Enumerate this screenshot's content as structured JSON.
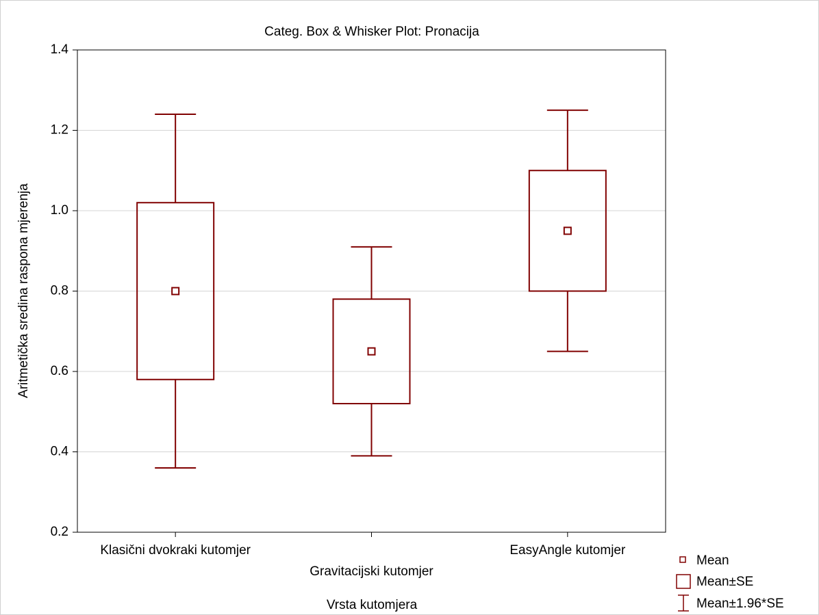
{
  "chart_data": {
    "type": "box",
    "title": "Categ. Box & Whisker Plot: Pronacija",
    "x_label": "Vrsta kutomjera",
    "y_label": "Aritmetička sredina raspona mjerenja",
    "categories": [
      "Klasični dvokraki kutomjer",
      "Gravitacijski kutomjer",
      "EasyAngle kutomjer"
    ],
    "series": [
      {
        "name": "Mean",
        "color": "#800000",
        "values": [
          0.8,
          0.65,
          0.95
        ]
      },
      {
        "name": "Mean±SE",
        "color": "#800000",
        "low": [
          0.58,
          0.52,
          0.8
        ],
        "high": [
          1.02,
          0.78,
          1.1
        ]
      },
      {
        "name": "Mean±1.96*SE",
        "color": "#800000",
        "low": [
          0.36,
          0.39,
          0.65
        ],
        "high": [
          1.24,
          0.91,
          1.25
        ]
      }
    ],
    "ylim": [
      0.2,
      1.4
    ],
    "yticks": [
      0.2,
      0.4,
      0.6,
      0.8,
      {
        "value": 1,
        "label": "1.0"
      },
      1.2,
      1.4
    ],
    "grid": true,
    "legend": "bottom-right"
  }
}
